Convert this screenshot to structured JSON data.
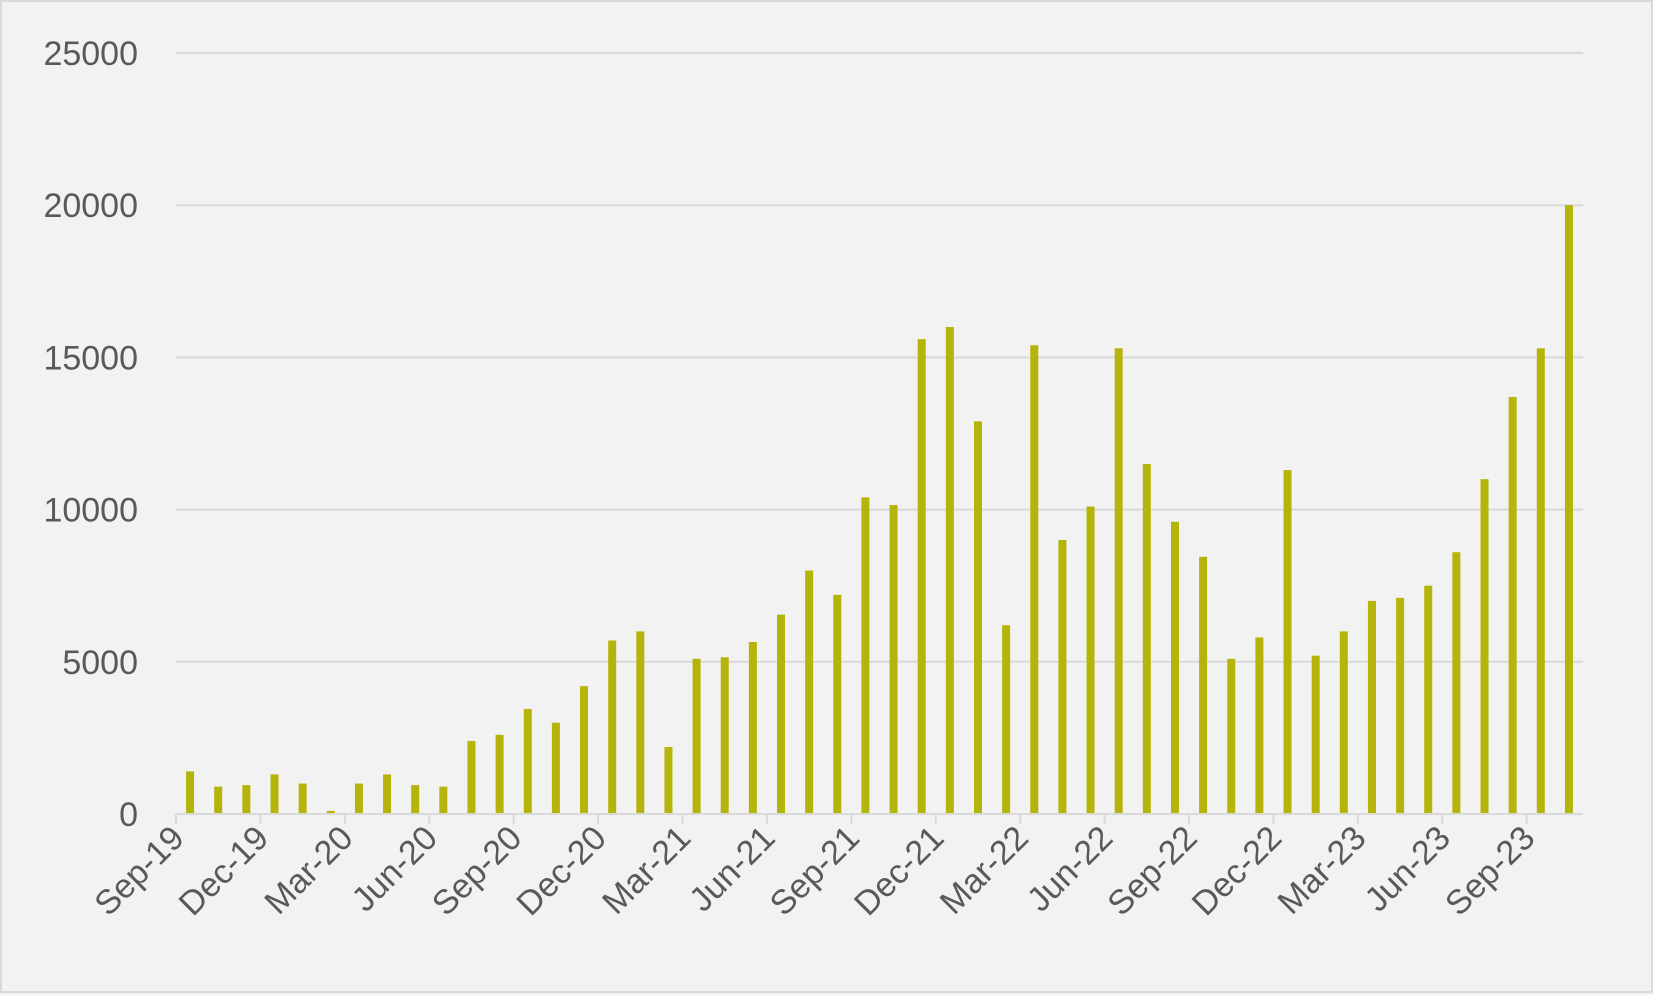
{
  "chart_data": {
    "type": "bar",
    "title": "",
    "xlabel": "",
    "ylabel": "",
    "ylim": [
      0,
      25000
    ],
    "y_ticks": [
      "0",
      "5000",
      "10000",
      "15000",
      "20000",
      "25000"
    ],
    "x_tick_labels": [
      "Sep-19",
      "Dec-19",
      "Mar-20",
      "Jun-20",
      "Sep-20",
      "Dec-20",
      "Mar-21",
      "Jun-21",
      "Sep-21",
      "Dec-21",
      "Mar-22",
      "Jun-22",
      "Sep-22",
      "Dec-22",
      "Mar-23",
      "Jun-23",
      "Sep-23"
    ],
    "categories": [
      "Sep-19",
      "Oct-19",
      "Nov-19",
      "Dec-19",
      "Jan-20",
      "Feb-20",
      "Mar-20",
      "Apr-20",
      "May-20",
      "Jun-20",
      "Jul-20",
      "Aug-20",
      "Sep-20",
      "Oct-20",
      "Nov-20",
      "Dec-20",
      "Jan-21",
      "Feb-21",
      "Mar-21",
      "Apr-21",
      "May-21",
      "Jun-21",
      "Jul-21",
      "Aug-21",
      "Sep-21",
      "Oct-21",
      "Nov-21",
      "Dec-21",
      "Jan-22",
      "Feb-22",
      "Mar-22",
      "Apr-22",
      "May-22",
      "Jun-22",
      "Jul-22",
      "Aug-22",
      "Sep-22",
      "Oct-22",
      "Nov-22",
      "Dec-22",
      "Jan-23",
      "Feb-23",
      "Mar-23",
      "Apr-23",
      "May-23",
      "Jun-23",
      "Jul-23",
      "Aug-23",
      "Sep-23",
      "Oct-23"
    ],
    "values": [
      1400,
      900,
      950,
      1300,
      1000,
      100,
      1000,
      1300,
      950,
      900,
      2400,
      2600,
      3450,
      3000,
      4200,
      5700,
      6000,
      2200,
      5100,
      5150,
      5650,
      6550,
      8000,
      7200,
      10400,
      10150,
      15600,
      16000,
      12900,
      6200,
      15400,
      9000,
      10100,
      15300,
      11500,
      9600,
      8450,
      5100,
      5800,
      11300,
      5200,
      6000,
      7000,
      7100,
      7500,
      8600,
      11000,
      13700,
      15300,
      20000
    ],
    "grid": true,
    "legend": "none",
    "colors": {
      "bar": "#b5b40a",
      "grid": "#d9d9d9",
      "text": "#595959",
      "background": "#f2f2f2"
    }
  }
}
